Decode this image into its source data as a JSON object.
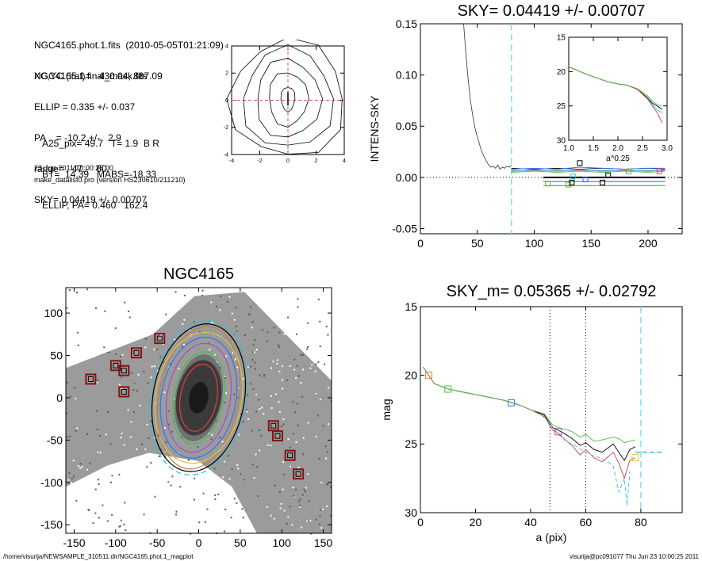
{
  "info": {
    "lines_top": [
      "NGC4165.phot.1.fits  (2010-05-05T01:21:09)",
      "NGC4165.1.final_mask.fits"
    ],
    "lines_mid": [
      "XC,YC (iraf)=   430.04, 887.09",
      "ELLIP = 0.335 +/- 0.037",
      "PA    = -10.2 +/-   2.9",
      "range=   47.-   60.",
      "SKY= 0.04419 +/- 0.00707"
    ],
    "lines_low": [
      "A25_pix= 49.7   T= 1.9  B R",
      "BT=  14.39   MABS=-18.33",
      "ELLIP, PA= 0.460   162.4"
    ],
    "date": "23-Jun-2011 10:00:25.00",
    "program": "make_datalist0.pro (version HS230610/211210)"
  },
  "footer": {
    "path": "/home/visurija/NEWSAMPLE_310511.dir/NGC4165.phot.1_magplot",
    "user": "visurija@pc091077  Thu Jun 23 10:00:25 2011"
  },
  "chart_data": [
    {
      "id": "contour",
      "type": "contour",
      "xlim": [
        -4,
        4
      ],
      "ylim": [
        -4,
        4
      ],
      "xticks": [
        "-4",
        "-2",
        "0",
        "2",
        "4"
      ],
      "yticks": [
        "-4",
        "-2",
        "0",
        "2",
        "4"
      ],
      "crosshair_color": "#e05050"
    },
    {
      "id": "sky",
      "type": "line",
      "title": "SKY= 0.04419 +/- 0.00707",
      "xlabel": "",
      "ylabel": "INTENS-SKY",
      "xlim": [
        0,
        230
      ],
      "ylim": [
        -0.055,
        0.15
      ],
      "xticks": [
        "0",
        "50",
        "100",
        "150",
        "200"
      ],
      "yticks": [
        "-0.05",
        "0.00",
        "0.05",
        "0.10",
        "0.15"
      ],
      "vline_x": 80,
      "vline_color": "#7fe0f0",
      "profile": {
        "x": [
          38,
          40,
          42,
          44,
          46,
          48,
          50,
          52,
          54,
          56,
          58,
          60,
          62,
          64,
          66,
          68,
          70,
          72,
          74,
          76,
          78,
          80
        ],
        "y": [
          0.15,
          0.12,
          0.095,
          0.075,
          0.06,
          0.048,
          0.04,
          0.032,
          0.025,
          0.02,
          0.016,
          0.012,
          0.01,
          0.011,
          0.009,
          0.012,
          0.008,
          0.01,
          0.009,
          0.011,
          0.01,
          0.012
        ]
      },
      "series": [
        {
          "color": "#000000",
          "x": [
            80,
            100,
            120,
            140,
            160,
            180,
            200,
            215
          ],
          "y": [
            0.009,
            0.008,
            0.009,
            0.008,
            0.009,
            0.008,
            0.009,
            0.008
          ]
        },
        {
          "color": "#3070ff",
          "x": [
            80,
            100,
            120,
            140,
            160,
            180,
            200,
            215
          ],
          "y": [
            0.008,
            0.009,
            0.008,
            0.01,
            0.009,
            0.008,
            0.009,
            0.009
          ]
        },
        {
          "color": "#e04040",
          "x": [
            80,
            100,
            120,
            140,
            160,
            180,
            200,
            215
          ],
          "y": [
            0.006,
            0.007,
            0.006,
            0.007,
            0.006,
            0.007,
            0.006,
            0.007
          ]
        },
        {
          "color": "#40c040",
          "x": [
            80,
            100,
            120,
            140,
            160,
            180,
            200,
            215
          ],
          "y": [
            0.005,
            0.006,
            0.005,
            0.006,
            0.005,
            0.006,
            0.005,
            0.006
          ]
        },
        {
          "color": "#30c0e0",
          "x": [
            80,
            100,
            120,
            140,
            160,
            180,
            200,
            215
          ],
          "y": [
            0.007,
            0.006,
            0.007,
            0.006,
            0.007,
            0.006,
            0.007,
            0.006
          ]
        }
      ],
      "hlines": [
        {
          "color": "#000000",
          "x": [
            108,
            215
          ],
          "y": 0.0
        },
        {
          "color": "#40c040",
          "x": [
            108,
            215
          ],
          "y": -0.008
        },
        {
          "color": "#3070ff",
          "x": [
            108,
            215
          ],
          "y": -0.004
        }
      ],
      "markers": [
        {
          "x": 112,
          "y": -0.006,
          "color": "#40c040"
        },
        {
          "x": 130,
          "y": -0.007,
          "color": "#40c040"
        },
        {
          "x": 133,
          "y": -0.005,
          "color": "#000000"
        },
        {
          "x": 140,
          "y": 0.014,
          "color": "#000000"
        },
        {
          "x": 145,
          "y": -0.002,
          "color": "#3070ff"
        },
        {
          "x": 160,
          "y": -0.005,
          "color": "#000000"
        },
        {
          "x": 165,
          "y": 0.002,
          "color": "#000000"
        },
        {
          "x": 183,
          "y": 0.006,
          "color": "#40c040"
        },
        {
          "x": 210,
          "y": 0.006,
          "color": "#e04040"
        },
        {
          "x": 134,
          "y": 0.001,
          "color": "#30c0e0"
        }
      ],
      "inset": {
        "xlabel": "a^0.25",
        "xlim": [
          1.0,
          3.0
        ],
        "ylim": [
          15,
          30
        ],
        "xticks": [
          "1.0",
          "1.5",
          "2.0",
          "2.5",
          "3.0"
        ],
        "yticks": [
          "15",
          "20",
          "25",
          "30"
        ],
        "series": [
          {
            "color": "#000000",
            "x": [
              1.0,
              1.2,
              1.4,
              1.6,
              1.8,
              2.0,
              2.2,
              2.4,
              2.6,
              2.7,
              2.8,
              2.9
            ],
            "y": [
              19.3,
              19.9,
              20.5,
              21.0,
              21.5,
              21.8,
              22.0,
              22.6,
              23.8,
              24.6,
              25.0,
              25.5
            ]
          },
          {
            "color": "#e04040",
            "x": [
              1.0,
              1.2,
              1.4,
              1.6,
              1.8,
              2.0,
              2.2,
              2.4,
              2.6,
              2.7,
              2.8,
              2.9
            ],
            "y": [
              19.3,
              19.9,
              20.5,
              21.0,
              21.5,
              21.8,
              22.0,
              22.6,
              24.0,
              25.0,
              26.0,
              27.5
            ]
          },
          {
            "color": "#40c040",
            "x": [
              1.0,
              1.2,
              1.4,
              1.6,
              1.8,
              2.0,
              2.2,
              2.4,
              2.6,
              2.7,
              2.8,
              2.9
            ],
            "y": [
              19.3,
              19.9,
              20.5,
              21.0,
              21.5,
              21.8,
              22.0,
              22.5,
              23.5,
              24.3,
              24.8,
              25.0
            ]
          },
          {
            "color": "#30c0e0",
            "x": [
              2.6,
              2.7,
              2.8,
              2.9
            ],
            "y": [
              23.9,
              24.8,
              25.6,
              26.0
            ]
          }
        ]
      }
    },
    {
      "id": "image",
      "type": "scatter",
      "title": "NGC4165",
      "xlim": [
        -160,
        160
      ],
      "ylim": [
        -160,
        130
      ],
      "xticks": [
        "-150",
        "-100",
        "-50",
        "0",
        "50",
        "100",
        "150"
      ],
      "yticks": [
        "-150",
        "-100",
        "-50",
        "0",
        "50",
        "100"
      ],
      "masked_stars": [
        [
          -130,
          22
        ],
        [
          -100,
          38
        ],
        [
          -90,
          32
        ],
        [
          -75,
          53
        ],
        [
          -90,
          7
        ],
        [
          -47,
          70
        ],
        [
          90,
          -33
        ],
        [
          95,
          -45
        ],
        [
          110,
          -68
        ],
        [
          120,
          -90
        ]
      ],
      "ellipses": [
        {
          "rx": 22,
          "ry": 40,
          "color": "#e04040"
        },
        {
          "rx": 30,
          "ry": 55,
          "color": "#40c040"
        },
        {
          "rx": 45,
          "ry": 72,
          "color": "#3070ff"
        },
        {
          "rx": 38,
          "ry": 65,
          "color": "#a050c0"
        },
        {
          "rx": 48,
          "ry": 85,
          "color": "#c08040"
        },
        {
          "rx": 52,
          "ry": 78,
          "color": "#e0c040"
        },
        {
          "rx": 58,
          "ry": 92,
          "color": "#30c0e0"
        },
        {
          "rx": 55,
          "ry": 88,
          "color": "#000000"
        }
      ]
    },
    {
      "id": "mag",
      "type": "line",
      "title": "SKY_m=  0.05365 +/- 0.02792",
      "xlabel": "a (pix)",
      "ylabel": "mag",
      "xlim": [
        0,
        95
      ],
      "ylim": [
        15,
        30
      ],
      "xticks": [
        "0",
        "20",
        "40",
        "60",
        "80"
      ],
      "yticks": [
        "15",
        "20",
        "25",
        "30"
      ],
      "vlines_dotted": [
        47,
        60
      ],
      "vline_dash": 80,
      "vline_color": "#7fe0f0",
      "series": [
        {
          "color": "#000000",
          "x": [
            1,
            5,
            10,
            15,
            20,
            25,
            30,
            35,
            40,
            45,
            48,
            50,
            52,
            55,
            58,
            60,
            63,
            66,
            70,
            72,
            74,
            76,
            78
          ],
          "y": [
            19.4,
            20.6,
            21.0,
            21.2,
            21.4,
            21.6,
            21.8,
            22.1,
            22.5,
            22.9,
            23.8,
            24.0,
            24.2,
            24.6,
            25.1,
            24.9,
            25.4,
            25.6,
            25.0,
            25.6,
            26.2,
            25.4,
            25.2
          ]
        },
        {
          "color": "#e04040",
          "x": [
            1,
            5,
            10,
            15,
            20,
            25,
            30,
            35,
            40,
            45,
            48,
            50,
            52,
            55,
            58,
            60,
            63,
            66,
            70,
            72,
            74,
            76,
            78
          ],
          "y": [
            19.4,
            20.6,
            21.0,
            21.2,
            21.4,
            21.6,
            21.8,
            22.1,
            22.5,
            23.0,
            24.0,
            24.2,
            24.6,
            25.1,
            25.8,
            25.4,
            26.0,
            26.3,
            25.6,
            26.4,
            27.5,
            26.2,
            26.0
          ]
        },
        {
          "color": "#40c040",
          "x": [
            1,
            5,
            10,
            15,
            20,
            25,
            30,
            35,
            40,
            45,
            48,
            50,
            52,
            55,
            58,
            60,
            63,
            66,
            70,
            72,
            74,
            76,
            78
          ],
          "y": [
            19.4,
            20.6,
            21.0,
            21.2,
            21.4,
            21.6,
            21.8,
            22.1,
            22.5,
            22.8,
            23.6,
            23.8,
            23.9,
            24.1,
            24.5,
            24.3,
            24.8,
            24.7,
            24.5,
            24.6,
            24.9,
            24.8,
            24.7
          ]
        },
        {
          "color": "#30c0e0",
          "x": [
            44,
            47,
            50,
            53,
            56,
            59,
            62,
            65,
            68,
            70,
            72,
            74,
            75,
            76
          ],
          "y": [
            22.9,
            23.5,
            24.3,
            24.8,
            25.1,
            25.5,
            25.8,
            26.0,
            26.3,
            26.6,
            28.5,
            27.5,
            29.5,
            27.0
          ]
        }
      ],
      "sky_level": {
        "x": [
          78,
          88
        ],
        "y": 25.6,
        "color": "#30c0e0"
      },
      "markers": [
        {
          "x": 3,
          "y": 20.0,
          "color": "#e08040"
        },
        {
          "x": 10,
          "y": 21.0,
          "color": "#40c040"
        },
        {
          "x": 33,
          "y": 22.0,
          "color": "#3070ff"
        },
        {
          "x": 50,
          "y": 24.1,
          "color": "#a050c0"
        },
        {
          "x": 78,
          "y": 26.0,
          "color": "#e0c040"
        }
      ]
    }
  ]
}
